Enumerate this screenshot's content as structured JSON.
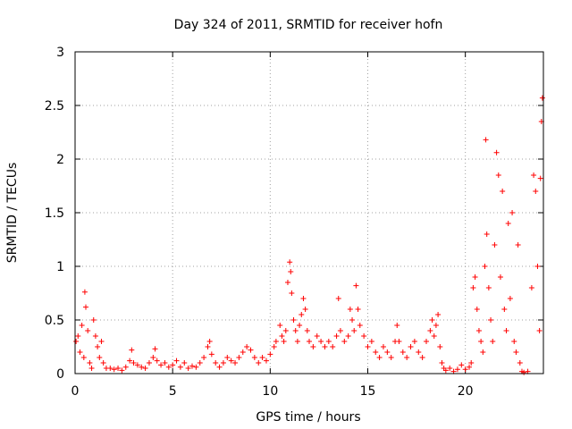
{
  "chart_data": {
    "type": "scatter",
    "title": "Day 324 of 2011, SRMTID for receiver hofn",
    "xlabel": "GPS time / hours",
    "ylabel": "SRMTID / TECUs",
    "xlim": [
      0,
      24
    ],
    "ylim": [
      0,
      3
    ],
    "xticks": [
      0,
      5,
      10,
      15,
      20
    ],
    "yticks": [
      0,
      0.5,
      1,
      1.5,
      2,
      2.5,
      3
    ],
    "xtick_labels": [
      "0",
      "5",
      "10",
      "15",
      "20"
    ],
    "ytick_labels": [
      "0",
      "0.5",
      "1",
      "1.5",
      "2",
      "2.5",
      "3"
    ],
    "grid": true,
    "marker": "+",
    "color": "#ff0000",
    "series": [
      {
        "name": "SRMTID",
        "points": [
          [
            0.05,
            0.3
          ],
          [
            0.15,
            0.35
          ],
          [
            0.25,
            0.2
          ],
          [
            0.35,
            0.45
          ],
          [
            0.45,
            0.15
          ],
          [
            0.5,
            0.76
          ],
          [
            0.55,
            0.62
          ],
          [
            0.65,
            0.4
          ],
          [
            0.75,
            0.1
          ],
          [
            0.85,
            0.05
          ],
          [
            0.95,
            0.5
          ],
          [
            1.05,
            0.35
          ],
          [
            1.15,
            0.25
          ],
          [
            1.25,
            0.15
          ],
          [
            1.35,
            0.3
          ],
          [
            1.45,
            0.1
          ],
          [
            1.6,
            0.05
          ],
          [
            1.8,
            0.05
          ],
          [
            2.0,
            0.04
          ],
          [
            2.2,
            0.05
          ],
          [
            2.4,
            0.03
          ],
          [
            2.6,
            0.06
          ],
          [
            2.8,
            0.12
          ],
          [
            2.9,
            0.22
          ],
          [
            3.0,
            0.1
          ],
          [
            3.2,
            0.08
          ],
          [
            3.4,
            0.06
          ],
          [
            3.6,
            0.05
          ],
          [
            3.8,
            0.1
          ],
          [
            4.0,
            0.15
          ],
          [
            4.1,
            0.23
          ],
          [
            4.2,
            0.12
          ],
          [
            4.4,
            0.08
          ],
          [
            4.6,
            0.1
          ],
          [
            4.8,
            0.06
          ],
          [
            5.0,
            0.08
          ],
          [
            5.2,
            0.12
          ],
          [
            5.4,
            0.06
          ],
          [
            5.6,
            0.1
          ],
          [
            5.8,
            0.05
          ],
          [
            6.0,
            0.07
          ],
          [
            6.2,
            0.06
          ],
          [
            6.4,
            0.1
          ],
          [
            6.6,
            0.15
          ],
          [
            6.8,
            0.25
          ],
          [
            6.9,
            0.3
          ],
          [
            7.0,
            0.18
          ],
          [
            7.2,
            0.1
          ],
          [
            7.4,
            0.06
          ],
          [
            7.6,
            0.1
          ],
          [
            7.8,
            0.15
          ],
          [
            8.0,
            0.12
          ],
          [
            8.2,
            0.1
          ],
          [
            8.4,
            0.15
          ],
          [
            8.6,
            0.2
          ],
          [
            8.8,
            0.25
          ],
          [
            9.0,
            0.22
          ],
          [
            9.2,
            0.15
          ],
          [
            9.4,
            0.1
          ],
          [
            9.6,
            0.15
          ],
          [
            9.8,
            0.12
          ],
          [
            10.0,
            0.18
          ],
          [
            10.2,
            0.25
          ],
          [
            10.3,
            0.3
          ],
          [
            10.5,
            0.45
          ],
          [
            10.6,
            0.35
          ],
          [
            10.7,
            0.3
          ],
          [
            10.8,
            0.4
          ],
          [
            10.9,
            0.85
          ],
          [
            11.0,
            1.04
          ],
          [
            11.05,
            0.95
          ],
          [
            11.1,
            0.75
          ],
          [
            11.2,
            0.5
          ],
          [
            11.3,
            0.4
          ],
          [
            11.4,
            0.3
          ],
          [
            11.5,
            0.45
          ],
          [
            11.6,
            0.55
          ],
          [
            11.7,
            0.7
          ],
          [
            11.8,
            0.6
          ],
          [
            11.9,
            0.4
          ],
          [
            12.0,
            0.3
          ],
          [
            12.2,
            0.25
          ],
          [
            12.4,
            0.35
          ],
          [
            12.6,
            0.3
          ],
          [
            12.8,
            0.25
          ],
          [
            13.0,
            0.3
          ],
          [
            13.2,
            0.25
          ],
          [
            13.4,
            0.35
          ],
          [
            13.5,
            0.7
          ],
          [
            13.6,
            0.4
          ],
          [
            13.8,
            0.3
          ],
          [
            14.0,
            0.35
          ],
          [
            14.1,
            0.6
          ],
          [
            14.2,
            0.5
          ],
          [
            14.3,
            0.4
          ],
          [
            14.4,
            0.82
          ],
          [
            14.5,
            0.6
          ],
          [
            14.6,
            0.45
          ],
          [
            14.8,
            0.35
          ],
          [
            15.0,
            0.25
          ],
          [
            15.2,
            0.3
          ],
          [
            15.4,
            0.2
          ],
          [
            15.6,
            0.15
          ],
          [
            15.8,
            0.25
          ],
          [
            16.0,
            0.2
          ],
          [
            16.2,
            0.15
          ],
          [
            16.4,
            0.3
          ],
          [
            16.5,
            0.45
          ],
          [
            16.6,
            0.3
          ],
          [
            16.8,
            0.2
          ],
          [
            17.0,
            0.15
          ],
          [
            17.2,
            0.25
          ],
          [
            17.4,
            0.3
          ],
          [
            17.6,
            0.2
          ],
          [
            17.8,
            0.15
          ],
          [
            18.0,
            0.3
          ],
          [
            18.2,
            0.4
          ],
          [
            18.3,
            0.5
          ],
          [
            18.4,
            0.35
          ],
          [
            18.5,
            0.45
          ],
          [
            18.6,
            0.55
          ],
          [
            18.7,
            0.25
          ],
          [
            18.8,
            0.1
          ],
          [
            18.9,
            0.05
          ],
          [
            19.0,
            0.03
          ],
          [
            19.2,
            0.05
          ],
          [
            19.4,
            0.02
          ],
          [
            19.6,
            0.04
          ],
          [
            19.8,
            0.08
          ],
          [
            20.0,
            0.04
          ],
          [
            20.2,
            0.06
          ],
          [
            20.3,
            0.1
          ],
          [
            20.4,
            0.8
          ],
          [
            20.5,
            0.9
          ],
          [
            20.6,
            0.6
          ],
          [
            20.7,
            0.4
          ],
          [
            20.8,
            0.3
          ],
          [
            20.9,
            0.2
          ],
          [
            21.0,
            1.0
          ],
          [
            21.05,
            2.18
          ],
          [
            21.1,
            1.3
          ],
          [
            21.2,
            0.8
          ],
          [
            21.3,
            0.5
          ],
          [
            21.4,
            0.3
          ],
          [
            21.5,
            1.2
          ],
          [
            21.6,
            2.06
          ],
          [
            21.7,
            1.85
          ],
          [
            21.8,
            0.9
          ],
          [
            21.9,
            1.7
          ],
          [
            22.0,
            0.6
          ],
          [
            22.1,
            0.4
          ],
          [
            22.2,
            1.4
          ],
          [
            22.3,
            0.7
          ],
          [
            22.4,
            1.5
          ],
          [
            22.5,
            0.3
          ],
          [
            22.6,
            0.2
          ],
          [
            22.7,
            1.2
          ],
          [
            22.8,
            0.1
          ],
          [
            22.9,
            0.02
          ],
          [
            23.0,
            0.01
          ],
          [
            23.2,
            0.02
          ],
          [
            23.4,
            0.8
          ],
          [
            23.5,
            1.85
          ],
          [
            23.6,
            1.7
          ],
          [
            23.7,
            1.0
          ],
          [
            23.8,
            0.4
          ],
          [
            23.85,
            1.82
          ],
          [
            23.9,
            2.35
          ],
          [
            23.95,
            2.57
          ]
        ]
      }
    ]
  }
}
